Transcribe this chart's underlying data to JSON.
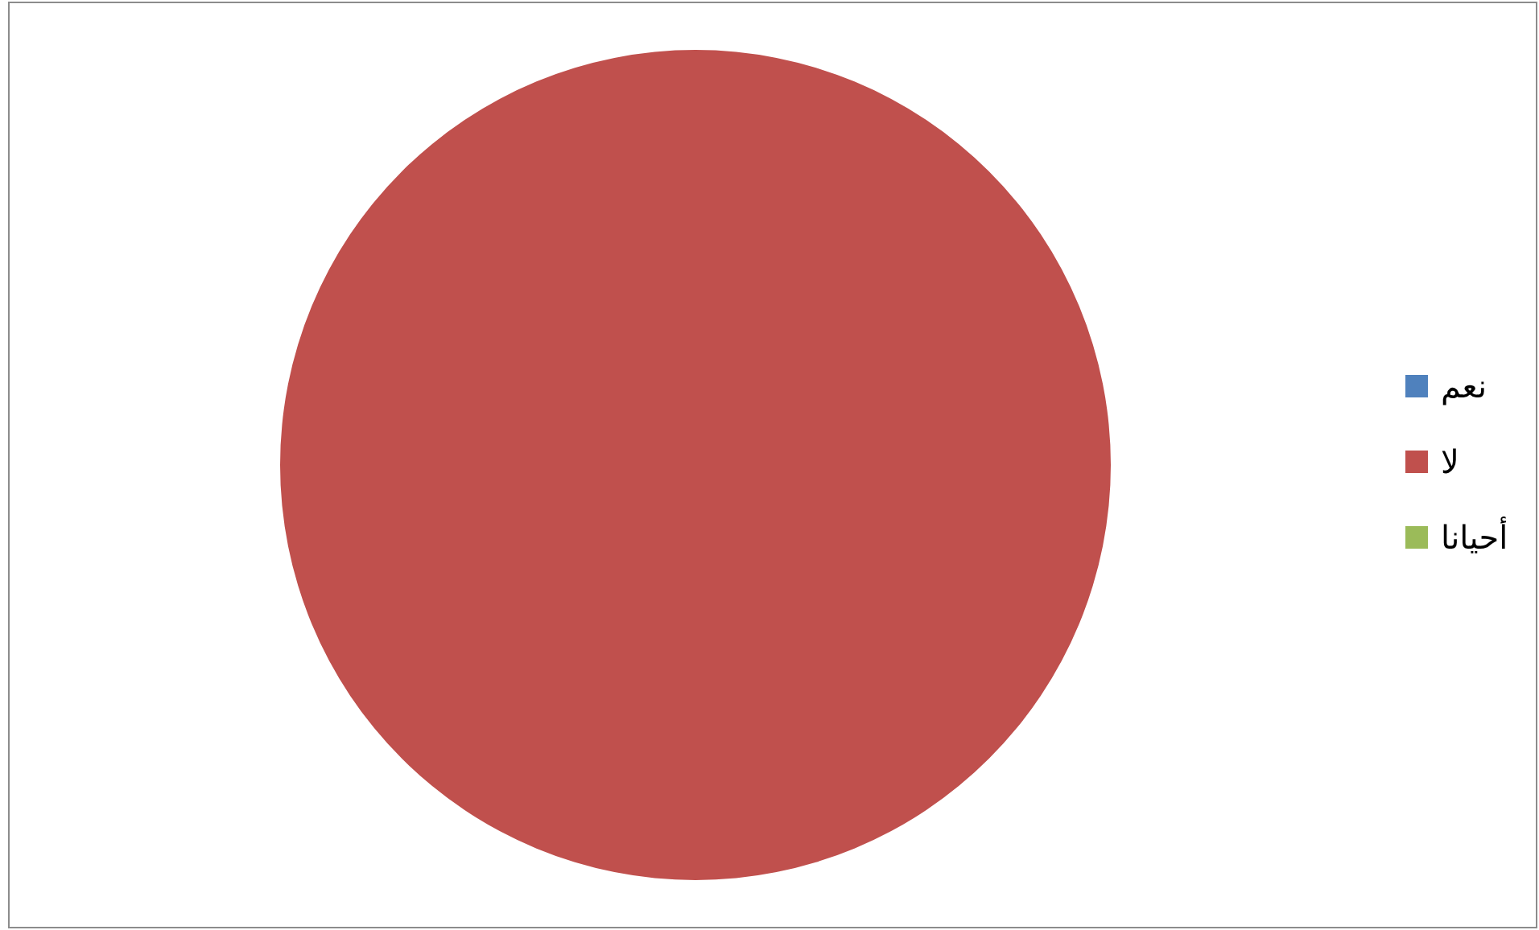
{
  "chart_data": {
    "type": "pie",
    "categories": [
      "نعم",
      "لا",
      "أحيانا"
    ],
    "values": [
      0,
      100,
      0
    ],
    "colors": [
      "#4f81bd",
      "#c0504d",
      "#9bbb59"
    ],
    "legend": "right"
  }
}
